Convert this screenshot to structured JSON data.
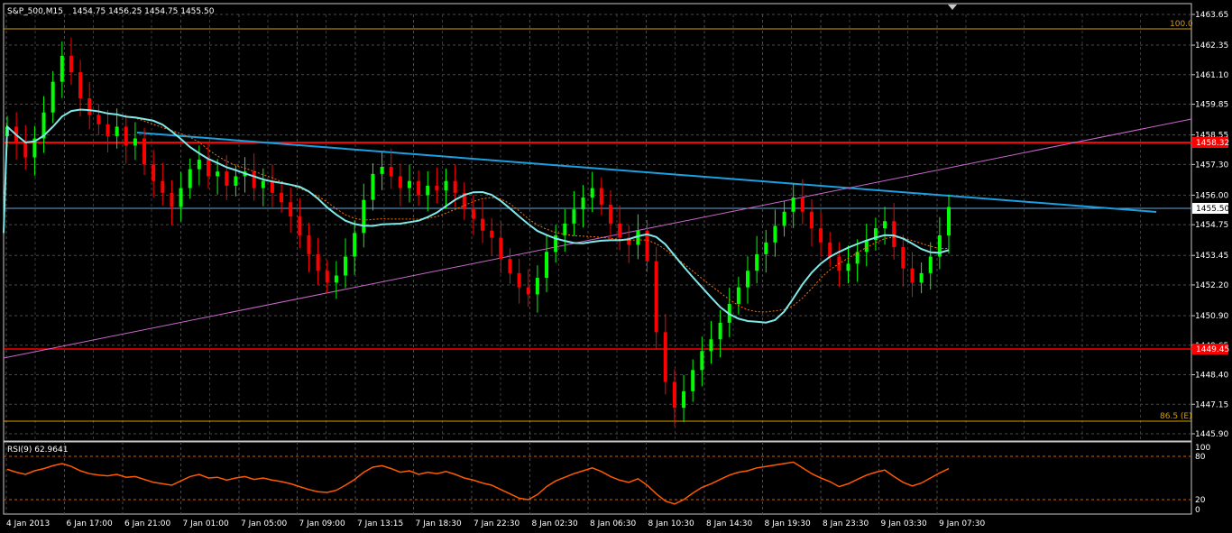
{
  "header": {
    "symbol": "S&P_500,M15",
    "ohlc": "1454.75 1456.25 1454.75 1455.50"
  },
  "rsi_label": "RSI(9) 62.9641",
  "colors": {
    "background": "#000000",
    "grid": "#4a4a4a",
    "frame": "#c8c8c8",
    "bull": "#00ff00",
    "bear": "#ff0000",
    "ma_fast": "#7fe8e8",
    "ma_slow": "#ff7000",
    "trend_down": "#1aa0e0",
    "trend_up": "#cc66cc",
    "horizontal_red": "#ff0000",
    "fib": "#d4a000",
    "rsi": "#ff5a00",
    "current_price_box": "#ffffff"
  },
  "chart_data": [
    {
      "type": "candlestick",
      "ylim": [
        1445.9,
        1463.65
      ],
      "price_ticks": [
        "1463.65",
        "1462.35",
        "1461.10",
        "1459.85",
        "1458.55",
        "1457.30",
        "1456.00",
        "1454.75",
        "1453.45",
        "1452.20",
        "1450.90",
        "1449.65",
        "1448.40",
        "1447.15",
        "1445.90"
      ],
      "time_ticks": [
        "4 Jan 2013",
        "6 Jan 17:00",
        "6 Jan 21:00",
        "7 Jan 01:00",
        "7 Jan 05:00",
        "7 Jan 09:00",
        "7 Jan 13:15",
        "7 Jan 18:30",
        "7 Jan 22:30",
        "8 Jan 02:30",
        "8 Jan 06:30",
        "8 Jan 10:30",
        "8 Jan 14:30",
        "8 Jan 19:30",
        "8 Jan 23:30",
        "9 Jan 03:30",
        "9 Jan 07:30"
      ],
      "closes": [
        1458.9,
        1458.2,
        1457.6,
        1458.4,
        1459.5,
        1460.8,
        1461.9,
        1461.2,
        1460.1,
        1459.4,
        1459.0,
        1458.5,
        1458.9,
        1458.1,
        1458.4,
        1457.3,
        1456.6,
        1456.1,
        1455.5,
        1456.3,
        1457.1,
        1457.5,
        1456.8,
        1457.0,
        1456.4,
        1456.8,
        1457.0,
        1456.3,
        1456.6,
        1456.1,
        1455.7,
        1455.1,
        1454.3,
        1453.5,
        1452.8,
        1452.3,
        1452.6,
        1453.4,
        1454.4,
        1455.8,
        1456.9,
        1457.2,
        1456.8,
        1456.3,
        1456.6,
        1456.0,
        1456.4,
        1456.2,
        1456.6,
        1456.1,
        1455.4,
        1455.0,
        1454.5,
        1454.2,
        1453.3,
        1452.7,
        1452.1,
        1451.8,
        1452.5,
        1453.6,
        1454.3,
        1454.8,
        1455.4,
        1455.9,
        1456.3,
        1455.6,
        1454.8,
        1454.2,
        1453.9,
        1454.5,
        1453.2,
        1450.2,
        1448.1,
        1447.0,
        1447.7,
        1448.6,
        1449.4,
        1449.9,
        1450.6,
        1451.4,
        1452.1,
        1452.8,
        1453.5,
        1454.0,
        1454.7,
        1455.3,
        1455.9,
        1455.3,
        1454.6,
        1454.0,
        1453.4,
        1452.8,
        1453.1,
        1453.6,
        1454.1,
        1454.6,
        1454.9,
        1453.8,
        1452.9,
        1452.3,
        1452.7,
        1453.4,
        1454.3,
        1455.5
      ],
      "levels": {
        "red_line_price": "1458.32",
        "red_line_low_price": "1449.45",
        "current_price": "1455.50",
        "fib_100": "100.0",
        "fib_865": "86.5 (E)"
      }
    },
    {
      "type": "line",
      "name": "RSI(9)",
      "ylim": [
        0,
        100
      ],
      "ticks": [
        "100",
        "80",
        "20",
        "0"
      ],
      "values": [
        62,
        58,
        55,
        60,
        63,
        67,
        70,
        66,
        60,
        56,
        54,
        53,
        55,
        51,
        52,
        48,
        44,
        42,
        40,
        46,
        52,
        55,
        50,
        51,
        47,
        50,
        52,
        48,
        50,
        47,
        45,
        42,
        38,
        34,
        31,
        30,
        33,
        40,
        48,
        58,
        65,
        67,
        63,
        58,
        60,
        55,
        58,
        56,
        59,
        55,
        50,
        47,
        43,
        40,
        34,
        28,
        22,
        20,
        27,
        38,
        46,
        51,
        56,
        60,
        64,
        59,
        52,
        47,
        44,
        49,
        40,
        28,
        18,
        14,
        20,
        29,
        37,
        42,
        48,
        54,
        58,
        60,
        64,
        66,
        68,
        70,
        72,
        64,
        56,
        50,
        45,
        38,
        42,
        48,
        54,
        58,
        61,
        52,
        44,
        39,
        43,
        50,
        57,
        63
      ]
    }
  ]
}
